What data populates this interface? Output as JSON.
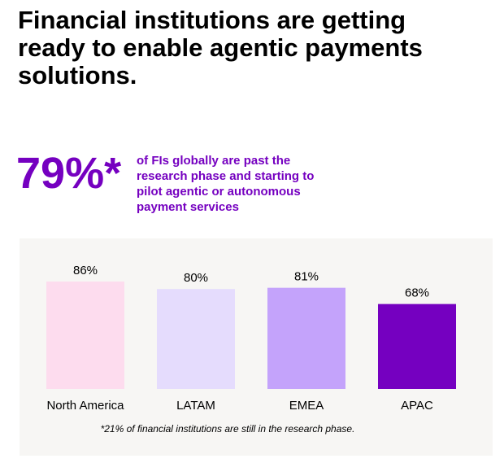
{
  "title_lines": [
    "Financial institutions are getting",
    "ready to enable agentic payments",
    "solutions."
  ],
  "stat": {
    "value_label": "79%*",
    "value": 79,
    "description_lines": [
      "of FIs  globally are past the",
      "research phase and starting to",
      "pilot agentic or autonomous",
      "payment services"
    ]
  },
  "chart_data": {
    "type": "bar",
    "categories": [
      "North America",
      "LATAM",
      "EMEA",
      "APAC"
    ],
    "values": [
      86,
      80,
      81,
      68
    ],
    "value_labels": [
      "86%",
      "80%",
      "81%",
      "68%"
    ],
    "colors": [
      "#fddcee",
      "#e5dcfd",
      "#c4a3fb",
      "#7500c0"
    ],
    "footnote": "*21% of financial institutions are still in the research phase."
  }
}
